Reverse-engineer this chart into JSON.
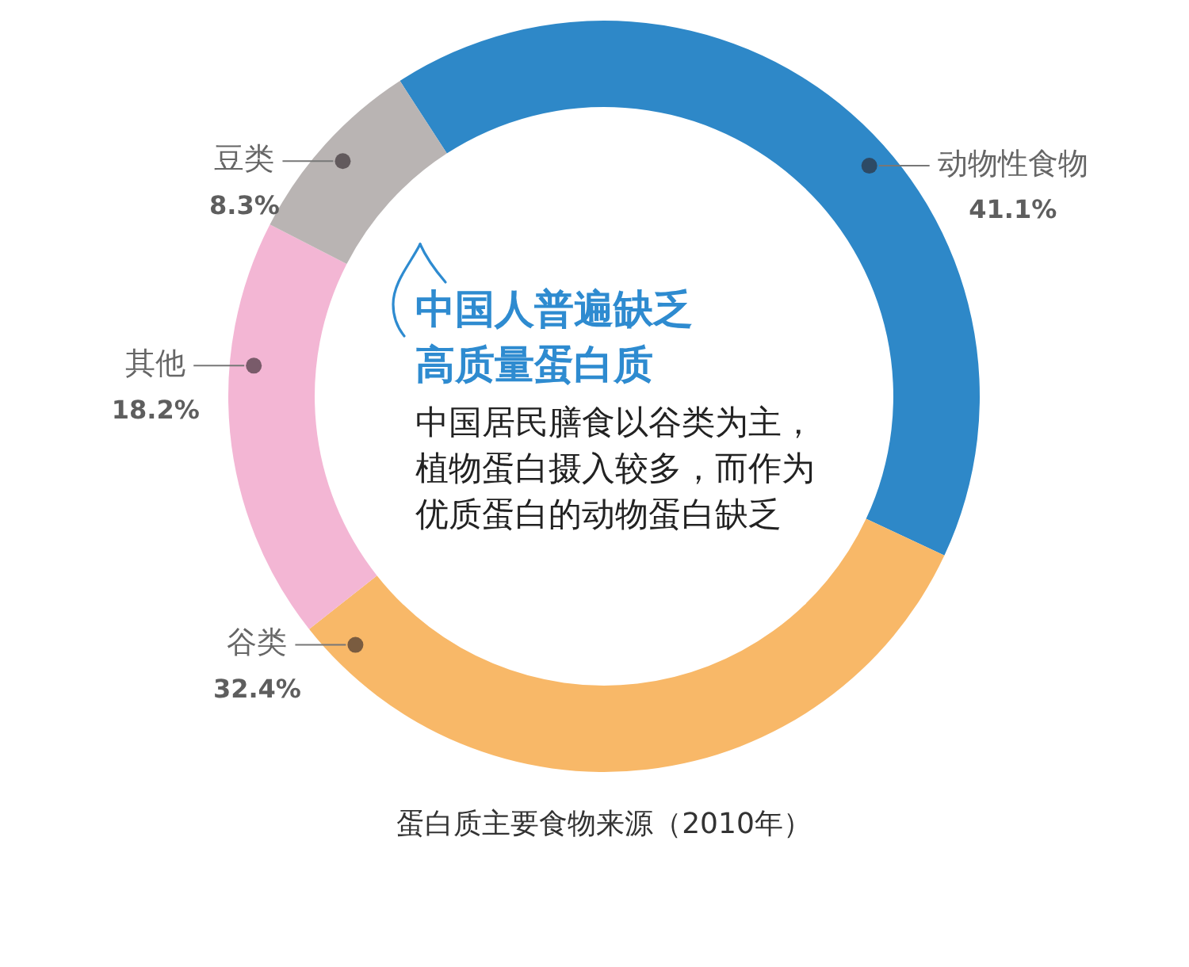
{
  "chart_data": {
    "type": "donut",
    "title": "中国人普遍缺乏高质量蛋白质",
    "subtitle": "中国居民膳食以谷类为主，植物蛋白摄入较多，而作为优质蛋白的动物蛋白缺乏",
    "categories": [
      "动物性食物",
      "谷类",
      "其他",
      "豆类"
    ],
    "values": [
      41.1,
      32.4,
      18.2,
      8.3
    ],
    "value_labels": [
      "41.1%",
      "32.4%",
      "18.2%",
      "8.3%"
    ],
    "colors": [
      "#2e88c8",
      "#f8b868",
      "#f3b6d4",
      "#b9b4b3"
    ],
    "annotations": [
      "蛋白质主要食物来源（2010年）"
    ],
    "legend": false
  }
}
